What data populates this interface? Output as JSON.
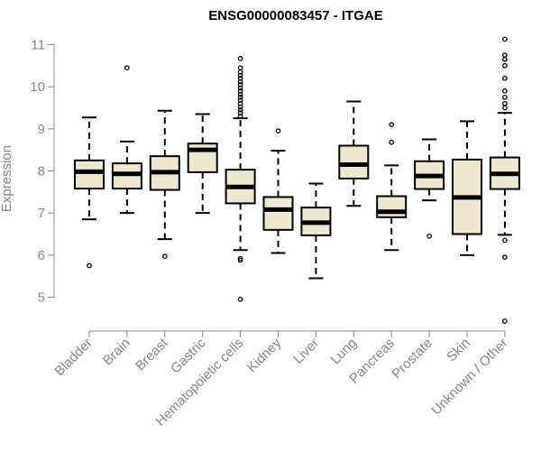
{
  "chart_data": {
    "type": "box",
    "title": "ENSG00000083457 - ITGAE",
    "ylabel": "Expression",
    "xlabel": "",
    "ylim": [
      4.3,
      11.3
    ],
    "yticks": [
      5,
      6,
      7,
      8,
      9,
      10,
      11
    ],
    "grid": false,
    "colors": {
      "box_fill": "#efe8d0",
      "box_stroke": "#000000",
      "axis": "#888888",
      "tick_text": "#888888"
    },
    "categories": [
      "Bladder",
      "Brain",
      "Breast",
      "Gastric",
      "Hematopoietic cells",
      "Kidney",
      "Liver",
      "Lung",
      "Pancreas",
      "Prostate",
      "Skin",
      "Unknown / Other"
    ],
    "boxes": [
      {
        "whisker_low": 6.85,
        "q1": 7.58,
        "median": 7.98,
        "q3": 8.25,
        "whisker_high": 9.27,
        "outliers": [
          5.75
        ]
      },
      {
        "whisker_low": 7.0,
        "q1": 7.58,
        "median": 7.93,
        "q3": 8.18,
        "whisker_high": 8.7,
        "outliers": [
          10.45
        ]
      },
      {
        "whisker_low": 6.38,
        "q1": 7.55,
        "median": 7.97,
        "q3": 8.35,
        "whisker_high": 9.43,
        "outliers": [
          5.97
        ]
      },
      {
        "whisker_low": 7.0,
        "q1": 7.97,
        "median": 8.5,
        "q3": 8.65,
        "whisker_high": 9.35,
        "outliers": []
      },
      {
        "whisker_low": 6.12,
        "q1": 7.23,
        "median": 7.62,
        "q3": 8.03,
        "whisker_high": 9.25,
        "outliers": [
          4.95,
          5.88,
          5.92,
          9.3,
          9.38,
          9.45,
          9.52,
          9.6,
          9.68,
          9.75,
          9.82,
          9.9,
          9.97,
          10.05,
          10.12,
          10.2,
          10.27,
          10.35,
          10.45,
          10.67
        ]
      },
      {
        "whisker_low": 6.05,
        "q1": 6.6,
        "median": 7.08,
        "q3": 7.38,
        "whisker_high": 8.48,
        "outliers": [
          8.95
        ]
      },
      {
        "whisker_low": 5.45,
        "q1": 6.47,
        "median": 6.77,
        "q3": 7.13,
        "whisker_high": 7.7,
        "outliers": []
      },
      {
        "whisker_low": 7.17,
        "q1": 7.82,
        "median": 8.15,
        "q3": 8.6,
        "whisker_high": 9.65,
        "outliers": []
      },
      {
        "whisker_low": 6.12,
        "q1": 6.9,
        "median": 7.03,
        "q3": 7.4,
        "whisker_high": 8.13,
        "outliers": [
          8.68,
          9.1
        ]
      },
      {
        "whisker_low": 7.3,
        "q1": 7.57,
        "median": 7.88,
        "q3": 8.23,
        "whisker_high": 8.75,
        "outliers": [
          6.45
        ]
      },
      {
        "whisker_low": 6.0,
        "q1": 6.5,
        "median": 7.37,
        "q3": 8.27,
        "whisker_high": 9.18,
        "outliers": []
      },
      {
        "whisker_low": 6.48,
        "q1": 7.57,
        "median": 7.93,
        "q3": 8.32,
        "whisker_high": 9.38,
        "outliers": [
          4.43,
          5.95,
          6.35,
          9.5,
          9.6,
          9.75,
          9.9,
          10.2,
          10.5,
          10.65,
          10.75,
          11.13
        ]
      }
    ]
  }
}
